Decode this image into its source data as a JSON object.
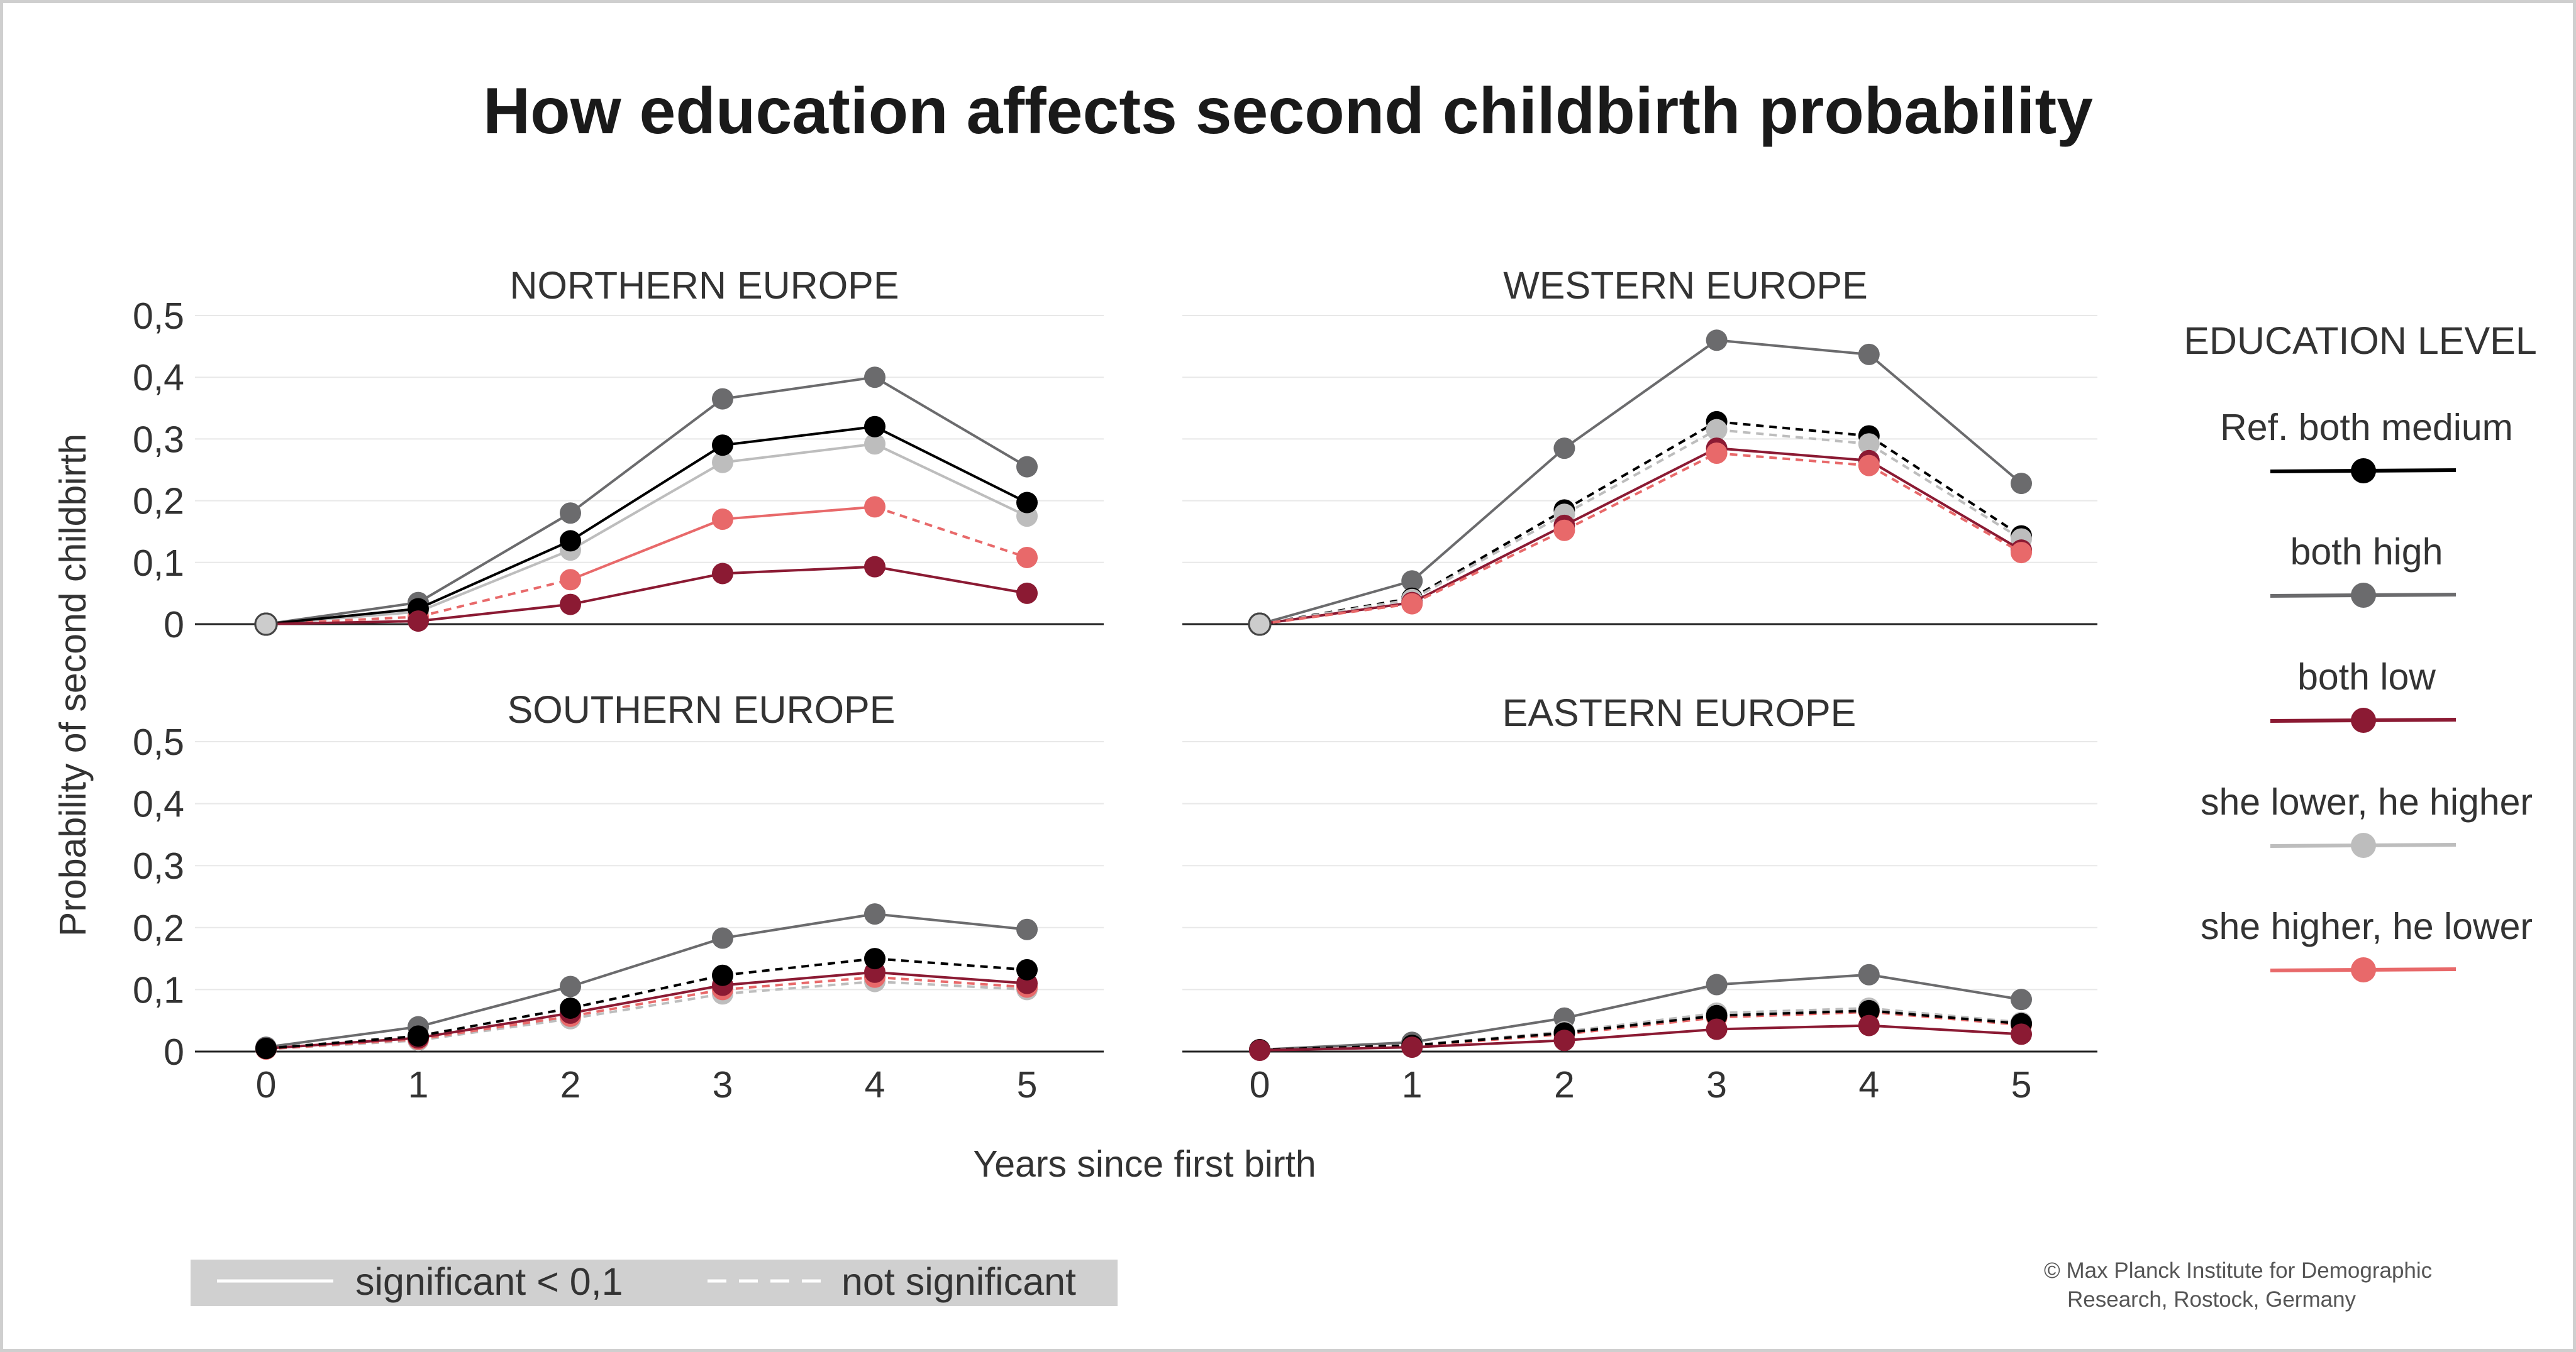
{
  "title": "How education affects second childbirth probability",
  "chart_data": {
    "type": "line",
    "y_axis_label": "Probability of second childbirth",
    "x_axis_label": "Years since first birth",
    "x_ticks": [
      "0",
      "1",
      "2",
      "3",
      "4",
      "5"
    ],
    "y_ticks": [
      "0",
      "0,1",
      "0,2",
      "0,3",
      "0,4",
      "0,5"
    ],
    "ylim": [
      0,
      0.5
    ],
    "legend": {
      "title": "EDUCATION LEVEL",
      "placement": "right",
      "entries": [
        {
          "key": "ref",
          "label": "Ref. both medium",
          "color": "#000000"
        },
        {
          "key": "high",
          "label": "both high",
          "color": "#6b6b6d"
        },
        {
          "key": "low",
          "label": "both low",
          "color": "#8b1a33"
        },
        {
          "key": "she_lower",
          "label": "she lower, he higher",
          "color": "#bdbdbd"
        },
        {
          "key": "she_higher",
          "label": "she higher, he lower",
          "color": "#e8696a"
        }
      ]
    },
    "significance_legend": {
      "solid": "significant < 0,1",
      "dashed": "not significant"
    },
    "panels": [
      {
        "title": "NORTHERN EUROPE",
        "series": [
          {
            "key": "high",
            "values": [
              0,
              0.035,
              0.18,
              0.365,
              0.4,
              0.255
            ],
            "dashed": [
              false,
              false,
              false,
              false,
              false
            ]
          },
          {
            "key": "she_lower",
            "values": [
              0,
              0.02,
              0.12,
              0.262,
              0.292,
              0.175
            ],
            "dashed": [
              false,
              false,
              false,
              false,
              false
            ]
          },
          {
            "key": "she_higher",
            "values": [
              0,
              0.012,
              0.072,
              0.17,
              0.19,
              0.108
            ],
            "dashed": [
              true,
              true,
              false,
              false,
              true
            ]
          },
          {
            "key": "ref",
            "values": [
              0,
              0.025,
              0.135,
              0.29,
              0.32,
              0.197
            ],
            "dashed": [
              false,
              false,
              false,
              false,
              false
            ]
          },
          {
            "key": "low",
            "values": [
              0,
              0.005,
              0.032,
              0.082,
              0.093,
              0.05
            ],
            "dashed": [
              false,
              false,
              false,
              false,
              false
            ]
          }
        ]
      },
      {
        "title": "WESTERN EUROPE",
        "series": [
          {
            "key": "high",
            "values": [
              0,
              0.07,
              0.285,
              0.46,
              0.437,
              0.228
            ],
            "dashed": [
              false,
              false,
              false,
              false,
              false
            ]
          },
          {
            "key": "ref",
            "values": [
              0,
              0.042,
              0.185,
              0.328,
              0.305,
              0.143
            ],
            "dashed": [
              true,
              true,
              true,
              true,
              true
            ]
          },
          {
            "key": "she_lower",
            "values": [
              0,
              0.04,
              0.178,
              0.315,
              0.292,
              0.138
            ],
            "dashed": [
              true,
              true,
              true,
              true,
              true
            ]
          },
          {
            "key": "low",
            "values": [
              0,
              0.035,
              0.16,
              0.285,
              0.265,
              0.12
            ],
            "dashed": [
              false,
              false,
              false,
              false,
              false
            ]
          },
          {
            "key": "she_higher",
            "values": [
              0,
              0.033,
              0.152,
              0.277,
              0.257,
              0.116
            ],
            "dashed": [
              true,
              true,
              true,
              true,
              true
            ]
          }
        ]
      },
      {
        "title": "SOUTHERN EUROPE",
        "series": [
          {
            "key": "high",
            "values": [
              0.007,
              0.04,
              0.105,
              0.183,
              0.222,
              0.197
            ],
            "dashed": [
              false,
              false,
              false,
              false,
              false
            ]
          },
          {
            "key": "she_lower",
            "values": [
              0.004,
              0.018,
              0.053,
              0.093,
              0.113,
              0.1
            ],
            "dashed": [
              true,
              true,
              true,
              true,
              true
            ]
          },
          {
            "key": "she_higher",
            "values": [
              0.004,
              0.02,
              0.057,
              0.1,
              0.12,
              0.104
            ],
            "dashed": [
              true,
              true,
              true,
              true,
              true
            ]
          },
          {
            "key": "low",
            "values": [
              0.005,
              0.022,
              0.062,
              0.107,
              0.128,
              0.11
            ],
            "dashed": [
              false,
              false,
              false,
              false,
              false
            ]
          },
          {
            "key": "ref",
            "values": [
              0.005,
              0.025,
              0.07,
              0.123,
              0.15,
              0.132
            ],
            "dashed": [
              true,
              true,
              true,
              true,
              true
            ]
          }
        ]
      },
      {
        "title": "EASTERN EUROPE",
        "series": [
          {
            "key": "high",
            "values": [
              0.003,
              0.015,
              0.054,
              0.108,
              0.124,
              0.084
            ],
            "dashed": [
              false,
              false,
              false,
              false,
              false
            ]
          },
          {
            "key": "she_lower",
            "values": [
              0.003,
              0.01,
              0.032,
              0.062,
              0.07,
              0.047
            ],
            "dashed": [
              true,
              true,
              true,
              true,
              true
            ]
          },
          {
            "key": "she_higher",
            "values": [
              0.003,
              0.009,
              0.028,
              0.055,
              0.064,
              0.043
            ],
            "dashed": [
              true,
              true,
              true,
              true,
              true
            ]
          },
          {
            "key": "ref",
            "values": [
              0.003,
              0.01,
              0.03,
              0.058,
              0.066,
              0.045
            ],
            "dashed": [
              true,
              true,
              true,
              true,
              true
            ]
          },
          {
            "key": "low",
            "values": [
              0.002,
              0.007,
              0.018,
              0.036,
              0.042,
              0.028
            ],
            "dashed": [
              false,
              false,
              false,
              false,
              false
            ]
          }
        ]
      }
    ]
  },
  "credit": {
    "line1": "© Max Planck Institute for Demographic",
    "line2": "Research, Rostock, Germany"
  }
}
